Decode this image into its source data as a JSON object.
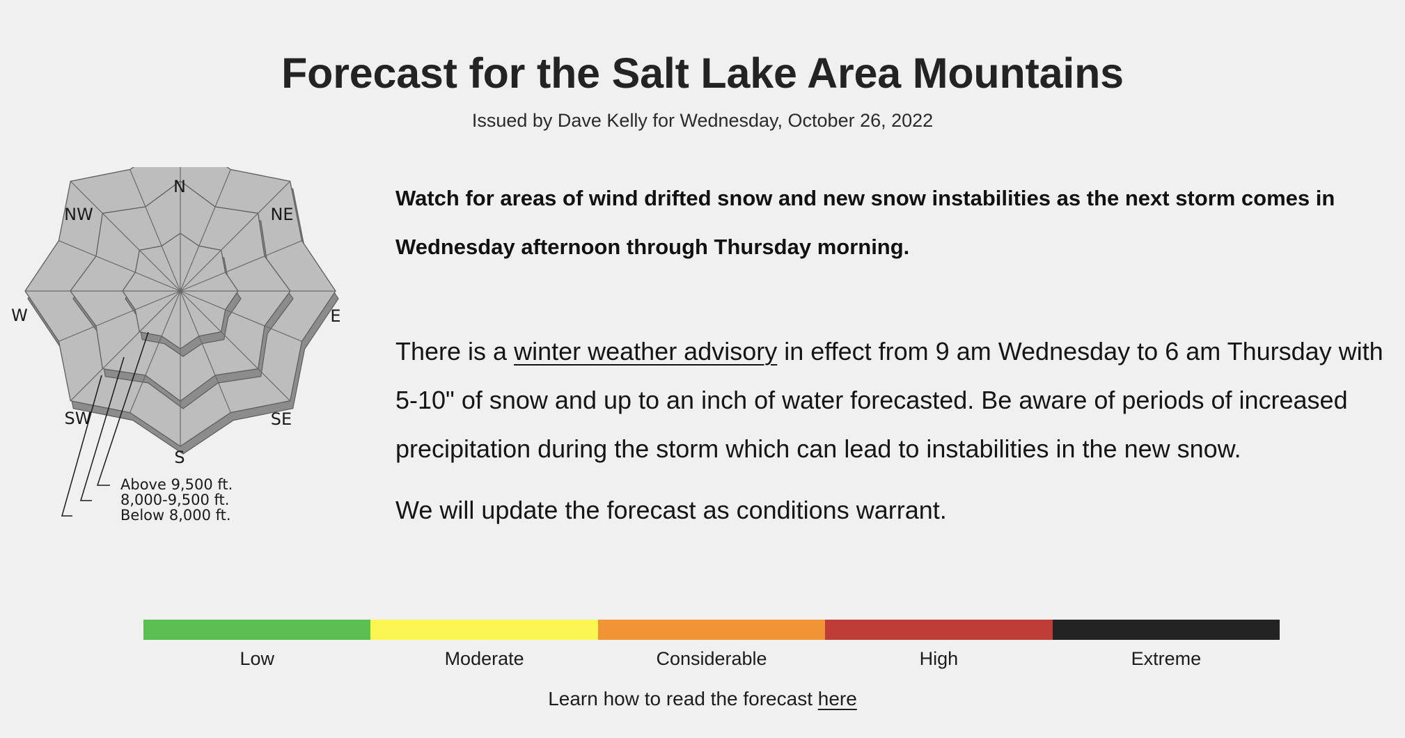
{
  "header": {
    "title": "Forecast for the Salt Lake Area Mountains",
    "issued": "Issued by Dave Kelly for Wednesday, October 26, 2022"
  },
  "rose": {
    "directions": {
      "n": "N",
      "ne": "NE",
      "e": "E",
      "se": "SE",
      "s": "S",
      "sw": "SW",
      "w": "W",
      "nw": "NW"
    },
    "legend": {
      "above": "Above 9,500 ft.",
      "mid": "8,000-9,500 ft.",
      "below": "Below 8,000 ft."
    }
  },
  "bottom_line": "Watch for areas of wind drifted snow and new snow instabilities as the next storm comes in Wednesday afternoon through Thursday morning.",
  "discussion": {
    "before_link": "There is a ",
    "link_text": "winter weather advisory",
    "after_link": " in effect from 9 am Wednesday to 6 am Thursday with 5-10\" of snow and up to an inch of water forecasted. Be aware of periods of increased precipitation during the storm which can lead to instabilities in the new snow.",
    "update": "We will update the forecast as conditions warrant."
  },
  "danger_scale": [
    {
      "label": "Low",
      "color": "#5bbf52"
    },
    {
      "label": "Moderate",
      "color": "#fbf652"
    },
    {
      "label": "Considerable",
      "color": "#f19436"
    },
    {
      "label": "High",
      "color": "#bf3d37"
    },
    {
      "label": "Extreme",
      "color": "#232323"
    }
  ],
  "learn": {
    "text": "Learn how to read the forecast ",
    "link": "here"
  }
}
